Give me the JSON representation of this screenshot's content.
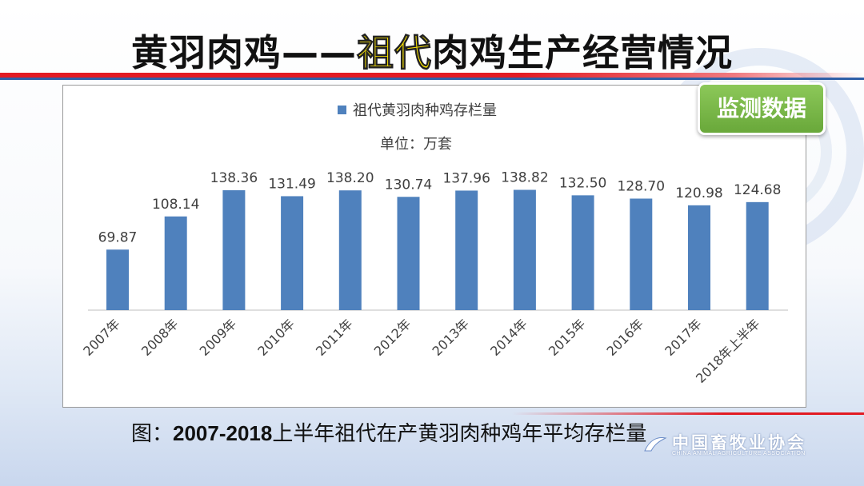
{
  "slide": {
    "title_part1": "黄羽肉鸡——",
    "title_highlight": "祖代",
    "title_part2": "肉鸡生产经营情况",
    "badge": "监测数据",
    "caption_prefix": "图：",
    "caption_years": "2007-2018",
    "caption_rest": "上半年祖代在产黄羽肉种鸡年平均存栏量",
    "logo_cn": "中国畜牧业协会",
    "logo_en": "CHINA ANIMAL AGRICULTURE ASSOCIATION"
  },
  "chart_data": {
    "type": "bar",
    "categories": [
      "2007年",
      "2008年",
      "2009年",
      "2010年",
      "2011年",
      "2012年",
      "2013年",
      "2014年",
      "2015年",
      "2016年",
      "2017年",
      "2018年上半年"
    ],
    "series": [
      {
        "name": "祖代黄羽肉种鸡存栏量",
        "values": [
          69.87,
          108.14,
          138.36,
          131.49,
          138.2,
          130.74,
          137.96,
          138.82,
          132.5,
          128.7,
          120.98,
          124.68
        ]
      }
    ],
    "unit_label": "单位：万套",
    "data_labels": [
      "69.87",
      "108.14",
      "138.36",
      "131.49",
      "138.20",
      "130.74",
      "137.96",
      "138.82",
      "132.50",
      "128.70",
      "120.98",
      "124.68"
    ],
    "ylim": [
      0,
      140
    ],
    "grid": false,
    "legend_position": "top",
    "bar_color": "#4f81bd"
  },
  "colors": {
    "accent_red": "#e21b23",
    "highlight_yellow": "#ffe800",
    "badge_green": "#7ab648"
  }
}
